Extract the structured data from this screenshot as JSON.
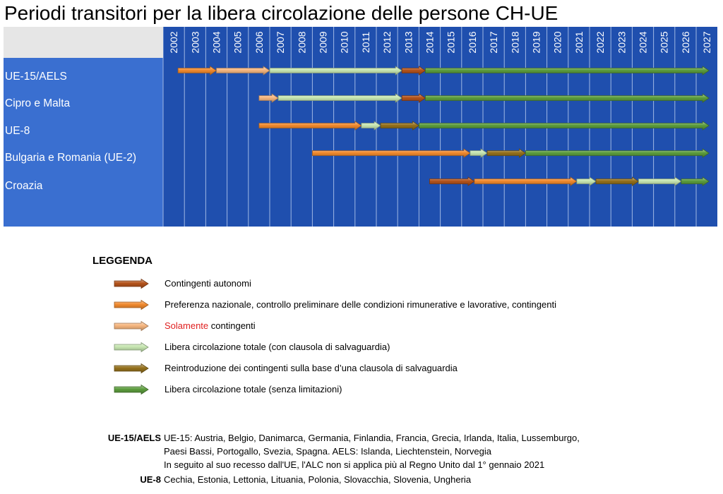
{
  "title": "Periodi transitori per la libera circolazione delle persone CH-UE",
  "colors": {
    "chart_bg": "#3a6fd0",
    "header_bg": "#1f4fae",
    "corner_bg": "#e6e6e6",
    "grid_line": "#9fb7e3",
    "contingenti_autonomi": "#b4531b",
    "preferenza_nazionale": "#f18a2e",
    "solamente_contingenti": "#f6b67f",
    "libera_clausola": "#c7e6b1",
    "reintroduzione": "#94701c",
    "libera_totale": "#5c9d3d"
  },
  "chart_data": {
    "type": "gantt",
    "years": [
      "2002",
      "2003",
      "2004",
      "2005",
      "2006",
      "2007",
      "2008",
      "2009",
      "2010",
      "2011",
      "2012",
      "2013",
      "2014",
      "2015",
      "2016",
      "2017",
      "2018",
      "2019",
      "2020",
      "2021",
      "2022",
      "2023",
      "2024",
      "2025",
      "2026",
      "2027"
    ],
    "rows": [
      {
        "label": "UE-15/AELS",
        "segments": [
          {
            "category": "preferenza_nazionale",
            "start": 2002.7,
            "end": 2004.5
          },
          {
            "category": "solamente_contingenti",
            "start": 2004.5,
            "end": 2007.0
          },
          {
            "category": "libera_clausola",
            "start": 2007.0,
            "end": 2013.2
          },
          {
            "category": "contingenti_autonomi",
            "start": 2013.2,
            "end": 2014.3
          },
          {
            "category": "libera_totale",
            "start": 2014.3,
            "end": 2027.6
          }
        ]
      },
      {
        "label": "Cipro e Malta",
        "segments": [
          {
            "category": "solamente_contingenti",
            "start": 2006.5,
            "end": 2007.4
          },
          {
            "category": "libera_clausola",
            "start": 2007.4,
            "end": 2013.2
          },
          {
            "category": "contingenti_autonomi",
            "start": 2013.2,
            "end": 2014.3
          },
          {
            "category": "libera_totale",
            "start": 2014.3,
            "end": 2027.6
          }
        ]
      },
      {
        "label": "UE-8",
        "segments": [
          {
            "category": "preferenza_nazionale",
            "start": 2006.5,
            "end": 2011.3
          },
          {
            "category": "libera_clausola",
            "start": 2011.3,
            "end": 2012.2
          },
          {
            "category": "reintroduzione",
            "start": 2012.2,
            "end": 2014.0
          },
          {
            "category": "libera_totale",
            "start": 2014.0,
            "end": 2027.6
          }
        ]
      },
      {
        "label": "Bulgaria e Romania (UE-2)",
        "segments": [
          {
            "category": "preferenza_nazionale",
            "start": 2009.0,
            "end": 2016.4
          },
          {
            "category": "libera_clausola",
            "start": 2016.4,
            "end": 2017.2
          },
          {
            "category": "reintroduzione",
            "start": 2017.2,
            "end": 2019.0
          },
          {
            "category": "libera_totale",
            "start": 2019.0,
            "end": 2027.6
          }
        ]
      },
      {
        "label": "Croazia",
        "segments": [
          {
            "category": "contingenti_autonomi",
            "start": 2014.5,
            "end": 2016.6
          },
          {
            "category": "preferenza_nazionale",
            "start": 2016.6,
            "end": 2021.4
          },
          {
            "category": "libera_clausola",
            "start": 2021.4,
            "end": 2022.3
          },
          {
            "category": "reintroduzione",
            "start": 2022.3,
            "end": 2024.3
          },
          {
            "category": "libera_clausola",
            "start": 2024.3,
            "end": 2026.3
          },
          {
            "category": "libera_totale",
            "start": 2026.3,
            "end": 2027.6
          }
        ]
      }
    ]
  },
  "legend": {
    "title": "LEGGENDA",
    "items": [
      {
        "category": "contingenti_autonomi",
        "text": "Contingenti autonomi"
      },
      {
        "category": "preferenza_nazionale",
        "text": "Preferenza nazionale, controllo preliminare delle condizioni rimunerative e lavorative, contingenti"
      },
      {
        "category": "solamente_contingenti",
        "text_red": "Solamente",
        "text": " contingenti"
      },
      {
        "category": "libera_clausola",
        "text": "Libera circolazione totale (con clausola di salvaguardia)"
      },
      {
        "category": "reintroduzione",
        "text": "Reintroduzione dei contingenti sulla base d’una clausola di salvaguardia"
      },
      {
        "category": "libera_totale",
        "text": "Libera circolazione totale (senza limitazioni)"
      }
    ]
  },
  "notes": {
    "ue15_key": "UE-15/AELS",
    "ue15_line1": "UE-15: Austria, Belgio, Danimarca, Germania, Finlandia, Francia, Grecia, Irlanda, Italia, Lussemburgo,",
    "ue15_line2": "Paesi Bassi, Portogallo, Svezia, Spagna. AELS: Islanda, Liechtenstein, Norvegia",
    "ue15_line3": "In seguito al suo recesso dall'UE, l'ALC non si applica più al Regno Unito dal 1° gennaio 2021",
    "ue8_key": "UE-8",
    "ue8_line1": "Cechia, Estonia, Lettonia, Lituania, Polonia, Slovacchia, Slovenia, Ungheria"
  }
}
